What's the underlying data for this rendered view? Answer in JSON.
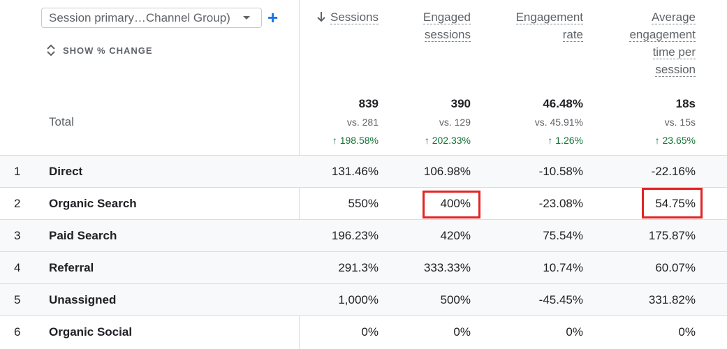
{
  "dimension": {
    "select_label": "Session primary…Channel Group)",
    "add_label": "+"
  },
  "show_change_label": "SHOW % CHANGE",
  "total_label": "Total",
  "columns": [
    {
      "label_lines": [
        "Sessions"
      ],
      "sorted": true
    },
    {
      "label_lines": [
        "Engaged",
        "sessions"
      ]
    },
    {
      "label_lines": [
        "Engagement",
        "rate"
      ]
    },
    {
      "label_lines": [
        "Average",
        "engagement",
        "time per",
        "session"
      ]
    }
  ],
  "totals": [
    {
      "value": "839",
      "vs": "vs. 281",
      "change": "198.58%"
    },
    {
      "value": "390",
      "vs": "vs. 129",
      "change": "202.33%"
    },
    {
      "value": "46.48%",
      "vs": "vs. 45.91%",
      "change": "1.26%"
    },
    {
      "value": "18s",
      "vs": "vs. 15s",
      "change": "23.65%"
    }
  ],
  "rows": [
    {
      "rank": "1",
      "channel": "Direct",
      "values": [
        "131.46%",
        "106.98%",
        "-10.58%",
        "-22.16%"
      ]
    },
    {
      "rank": "2",
      "channel": "Organic Search",
      "values": [
        "550%",
        "400%",
        "-23.08%",
        "54.75%"
      ],
      "highlighted": [
        1,
        3
      ]
    },
    {
      "rank": "3",
      "channel": "Paid Search",
      "values": [
        "196.23%",
        "420%",
        "75.54%",
        "175.87%"
      ]
    },
    {
      "rank": "4",
      "channel": "Referral",
      "values": [
        "291.3%",
        "333.33%",
        "10.74%",
        "60.07%"
      ]
    },
    {
      "rank": "5",
      "channel": "Unassigned",
      "values": [
        "1,000%",
        "500%",
        "-45.45%",
        "331.82%"
      ]
    },
    {
      "rank": "6",
      "channel": "Organic Social",
      "values": [
        "0%",
        "0%",
        "0%",
        "0%"
      ]
    }
  ],
  "colors": {
    "positive_change": "#137333",
    "highlight_box": "#e32424",
    "accent": "#1a73e8"
  }
}
